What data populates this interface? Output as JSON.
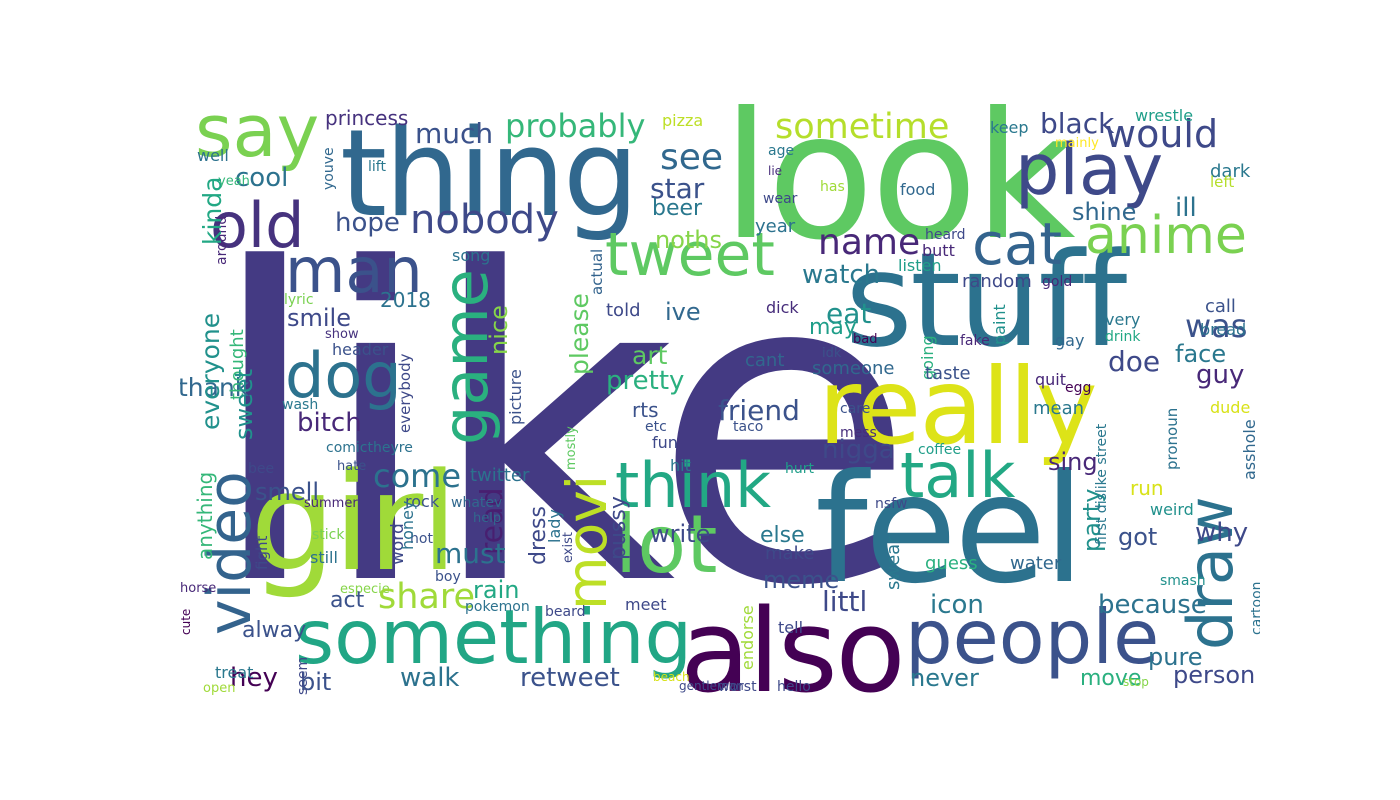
{
  "words": [
    {
      "text": "like",
      "color": "#443a83"
    },
    {
      "text": "look",
      "color": "#5ec962"
    },
    {
      "text": "thing",
      "color": "#31688e"
    },
    {
      "text": "stuff",
      "color": "#2c728e"
    },
    {
      "text": "feel",
      "color": "#2c728e"
    },
    {
      "text": "girl",
      "color": "#a0da39"
    },
    {
      "text": "also",
      "color": "#440154"
    },
    {
      "text": "really",
      "color": "#dde318"
    },
    {
      "text": "something",
      "color": "#21a685"
    },
    {
      "text": "people",
      "color": "#3b528b"
    },
    {
      "text": "say",
      "color": "#7ad151"
    },
    {
      "text": "play",
      "color": "#3e4989"
    },
    {
      "text": "man",
      "color": "#3b528b"
    },
    {
      "text": "old",
      "color": "#46327e"
    },
    {
      "text": "cat",
      "color": "#33638d"
    },
    {
      "text": "tweet",
      "color": "#5ec962"
    },
    {
      "text": "anime",
      "color": "#7ad151"
    },
    {
      "text": "dog",
      "color": "#2c728e"
    },
    {
      "text": "game",
      "color": "#2ab07f"
    },
    {
      "text": "think",
      "color": "#22a884"
    },
    {
      "text": "lot",
      "color": "#5ec962"
    },
    {
      "text": "talk",
      "color": "#22a884"
    },
    {
      "text": "draw",
      "color": "#2c728e"
    },
    {
      "text": "video",
      "color": "#33638d"
    },
    {
      "text": "movi",
      "color": "#bddf26"
    },
    {
      "text": "nobody",
      "color": "#3e4989"
    },
    {
      "text": "name",
      "color": "#482878"
    },
    {
      "text": "see",
      "color": "#31688e"
    },
    {
      "text": "sometime",
      "color": "#b5de2b"
    },
    {
      "text": "would",
      "color": "#3e4989"
    },
    {
      "text": "probably",
      "color": "#35b779"
    },
    {
      "text": "much",
      "color": "#3b528b"
    },
    {
      "text": "black",
      "color": "#3e4989"
    },
    {
      "text": "star",
      "color": "#3b528b"
    },
    {
      "text": "cool",
      "color": "#2c728e"
    },
    {
      "text": "hope",
      "color": "#3b528b"
    },
    {
      "text": "princess",
      "color": "#46327e"
    },
    {
      "text": "pizza",
      "color": "#bddf26"
    },
    {
      "text": "wrestle",
      "color": "#1f9e89"
    },
    {
      "text": "mainly",
      "color": "#fde725"
    },
    {
      "text": "keep",
      "color": "#2a788e"
    },
    {
      "text": "shine",
      "color": "#31688e"
    },
    {
      "text": "ill",
      "color": "#2c728e"
    },
    {
      "text": "dark",
      "color": "#2a788e"
    },
    {
      "text": "left",
      "color": "#b5de2b"
    },
    {
      "text": "food",
      "color": "#31688e"
    },
    {
      "text": "has",
      "color": "#a0da39"
    },
    {
      "text": "beer",
      "color": "#2a788e"
    },
    {
      "text": "noths",
      "color": "#86d549"
    },
    {
      "text": "year",
      "color": "#2c728e"
    },
    {
      "text": "heard",
      "color": "#3e4989"
    },
    {
      "text": "butt",
      "color": "#482878"
    },
    {
      "text": "listen",
      "color": "#1f9e89"
    },
    {
      "text": "watch",
      "color": "#2a788e"
    },
    {
      "text": "well",
      "color": "#2c728e"
    },
    {
      "text": "lift",
      "color": "#2a788e"
    },
    {
      "text": "age",
      "color": "#2a788e"
    },
    {
      "text": "lie",
      "color": "#472d7b"
    },
    {
      "text": "wear",
      "color": "#3e4989"
    },
    {
      "text": "youve",
      "color": "#31688e"
    },
    {
      "text": "yeah",
      "color": "#35b779"
    },
    {
      "text": "around",
      "color": "#482878"
    },
    {
      "text": "kinda",
      "color": "#22a884"
    },
    {
      "text": "song",
      "color": "#2c728e"
    },
    {
      "text": "2018",
      "color": "#2c728e"
    },
    {
      "text": "smile",
      "color": "#3e4989"
    },
    {
      "text": "thank",
      "color": "#31688e"
    },
    {
      "text": "everyone",
      "color": "#21918c"
    },
    {
      "text": "thought",
      "color": "#35b779"
    },
    {
      "text": "sweet",
      "color": "#21918c"
    },
    {
      "text": "lyric",
      "color": "#7ad151"
    },
    {
      "text": "show",
      "color": "#46327e"
    },
    {
      "text": "header",
      "color": "#3b528b"
    },
    {
      "text": "everybody",
      "color": "#3e4989"
    },
    {
      "text": "wash",
      "color": "#2a788e"
    },
    {
      "text": "bitch",
      "color": "#482878"
    },
    {
      "text": "please",
      "color": "#5ec962"
    },
    {
      "text": "nice",
      "color": "#86d549"
    },
    {
      "text": "picture",
      "color": "#3b528b"
    },
    {
      "text": "actual",
      "color": "#33638d"
    },
    {
      "text": "eat",
      "color": "#21918c"
    },
    {
      "text": "ive",
      "color": "#31688e"
    },
    {
      "text": "told",
      "color": "#3e4989"
    },
    {
      "text": "dick",
      "color": "#472d7b"
    },
    {
      "text": "may",
      "color": "#1f9e89"
    },
    {
      "text": "art",
      "color": "#5ec962"
    },
    {
      "text": "cant",
      "color": "#31688e"
    },
    {
      "text": "read",
      "color": "#481f70"
    },
    {
      "text": "pretty",
      "color": "#2ab07f"
    },
    {
      "text": "rts",
      "color": "#3b528b"
    },
    {
      "text": "friend",
      "color": "#3b528b"
    },
    {
      "text": "was",
      "color": "#3b528b"
    },
    {
      "text": "face",
      "color": "#2a788e"
    },
    {
      "text": "gay",
      "color": "#31688e"
    },
    {
      "text": "call",
      "color": "#3b528b"
    },
    {
      "text": "bread",
      "color": "#2c728e"
    },
    {
      "text": "very",
      "color": "#2a788e"
    },
    {
      "text": "drink",
      "color": "#22a884"
    },
    {
      "text": "doe",
      "color": "#3e4989"
    },
    {
      "text": "guy",
      "color": "#482878"
    },
    {
      "text": "random",
      "color": "#3e4989"
    },
    {
      "text": "fake",
      "color": "#482878"
    },
    {
      "text": "gold",
      "color": "#482878"
    },
    {
      "text": "egg",
      "color": "#440154"
    },
    {
      "text": "quit",
      "color": "#482878"
    },
    {
      "text": "mean",
      "color": "#2a788e"
    },
    {
      "text": "dude",
      "color": "#d8e219"
    },
    {
      "text": "pronoun",
      "color": "#2c728e"
    },
    {
      "text": "asshole",
      "color": "#31688e"
    },
    {
      "text": "someone",
      "color": "#31688e"
    },
    {
      "text": "idk",
      "color": "#3b528b"
    },
    {
      "text": "bad",
      "color": "#440154"
    },
    {
      "text": "going",
      "color": "#2ab07f"
    },
    {
      "text": "paint",
      "color": "#21918c"
    },
    {
      "text": "taste",
      "color": "#3b528b"
    },
    {
      "text": "care",
      "color": "#3b528b"
    },
    {
      "text": "mess",
      "color": "#472d7b"
    },
    {
      "text": "coffee",
      "color": "#1f9e89"
    },
    {
      "text": "hurt",
      "color": "#1f9e89"
    },
    {
      "text": "fun",
      "color": "#3e4989"
    },
    {
      "text": "hit",
      "color": "#2a788e"
    },
    {
      "text": "etc",
      "color": "#3b528b"
    },
    {
      "text": "taco",
      "color": "#3b528b"
    },
    {
      "text": "mostly",
      "color": "#5ec962"
    },
    {
      "text": "nigga",
      "color": "#3e4989"
    },
    {
      "text": "sing",
      "color": "#482878"
    },
    {
      "text": "come",
      "color": "#2c728e"
    },
    {
      "text": "smell",
      "color": "#3b528b"
    },
    {
      "text": "twitter",
      "color": "#2c728e"
    },
    {
      "text": "rock",
      "color": "#3b528b"
    },
    {
      "text": "whatev",
      "color": "#31688e"
    },
    {
      "text": "help",
      "color": "#31688e"
    },
    {
      "text": "hot",
      "color": "#3b528b"
    },
    {
      "text": "dress",
      "color": "#3e4989"
    },
    {
      "text": "lady",
      "color": "#2c728e"
    },
    {
      "text": "pussy",
      "color": "#3e4989"
    },
    {
      "text": "write",
      "color": "#3e4989"
    },
    {
      "text": "else",
      "color": "#2a788e"
    },
    {
      "text": "run",
      "color": "#d8e219"
    },
    {
      "text": "weird",
      "color": "#21918c"
    },
    {
      "text": "party",
      "color": "#21918c"
    },
    {
      "text": "why",
      "color": "#3e4989"
    },
    {
      "text": "got",
      "color": "#3b528b"
    },
    {
      "text": "must",
      "color": "#2c728e"
    },
    {
      "text": "rain",
      "color": "#22a884"
    },
    {
      "text": "meme",
      "color": "#3b528b"
    },
    {
      "text": "make",
      "color": "#3e4989"
    },
    {
      "text": "swear",
      "color": "#2a788e"
    },
    {
      "text": "guess",
      "color": "#2ab07f"
    },
    {
      "text": "water",
      "color": "#31688e"
    },
    {
      "text": "nsfw",
      "color": "#3e4989"
    },
    {
      "text": "first dislike street",
      "color": "#2a788e"
    },
    {
      "text": "smash",
      "color": "#21918c"
    },
    {
      "text": "cartoon",
      "color": "#2c728e"
    },
    {
      "text": "anything",
      "color": "#35b779"
    },
    {
      "text": "comictheyre",
      "color": "#2c728e"
    },
    {
      "text": "hate",
      "color": "#3b528b"
    },
    {
      "text": "bee",
      "color": "#3e4989"
    },
    {
      "text": "summer",
      "color": "#482878"
    },
    {
      "text": "stick",
      "color": "#7ad151"
    },
    {
      "text": "still",
      "color": "#2c728e"
    },
    {
      "text": "word",
      "color": "#3e4989"
    },
    {
      "text": "honey",
      "color": "#2c728e"
    },
    {
      "text": "fight",
      "color": "#3e4989"
    },
    {
      "text": "especie",
      "color": "#86d549"
    },
    {
      "text": "share",
      "color": "#a0da39"
    },
    {
      "text": "act",
      "color": "#3b528b"
    },
    {
      "text": "boy",
      "color": "#3b528b"
    },
    {
      "text": "exist",
      "color": "#3e4989"
    },
    {
      "text": "pokemon",
      "color": "#2c728e"
    },
    {
      "text": "beard",
      "color": "#3e4989"
    },
    {
      "text": "meet",
      "color": "#3e4989"
    },
    {
      "text": "littl",
      "color": "#3e4989"
    },
    {
      "text": "icon",
      "color": "#2a788e"
    },
    {
      "text": "because",
      "color": "#2c728e"
    },
    {
      "text": "tell",
      "color": "#3e4989"
    },
    {
      "text": "pure",
      "color": "#2c728e"
    },
    {
      "text": "person",
      "color": "#3e4989"
    },
    {
      "text": "move",
      "color": "#2ab07f"
    },
    {
      "text": "never",
      "color": "#2a788e"
    },
    {
      "text": "endorse",
      "color": "#a0da39"
    },
    {
      "text": "alway",
      "color": "#3b528b"
    },
    {
      "text": "hey",
      "color": "#440154"
    },
    {
      "text": "bit",
      "color": "#3b528b"
    },
    {
      "text": "walk",
      "color": "#2c728e"
    },
    {
      "text": "retweet",
      "color": "#3b528b"
    },
    {
      "text": "treat",
      "color": "#2a788e"
    },
    {
      "text": "seem",
      "color": "#3e4989"
    },
    {
      "text": "worst",
      "color": "#3e4989"
    },
    {
      "text": "hello",
      "color": "#3e4989"
    },
    {
      "text": "gentleman",
      "color": "#3e4989"
    },
    {
      "text": "stop",
      "color": "#86d549"
    },
    {
      "text": "open",
      "color": "#a0da39"
    },
    {
      "text": "horse",
      "color": "#482878"
    },
    {
      "text": "cute",
      "color": "#440154"
    },
    {
      "text": "beach",
      "color": "#d8e219"
    },
    {
      "text": "work",
      "color": "#3e4989"
    }
  ]
}
